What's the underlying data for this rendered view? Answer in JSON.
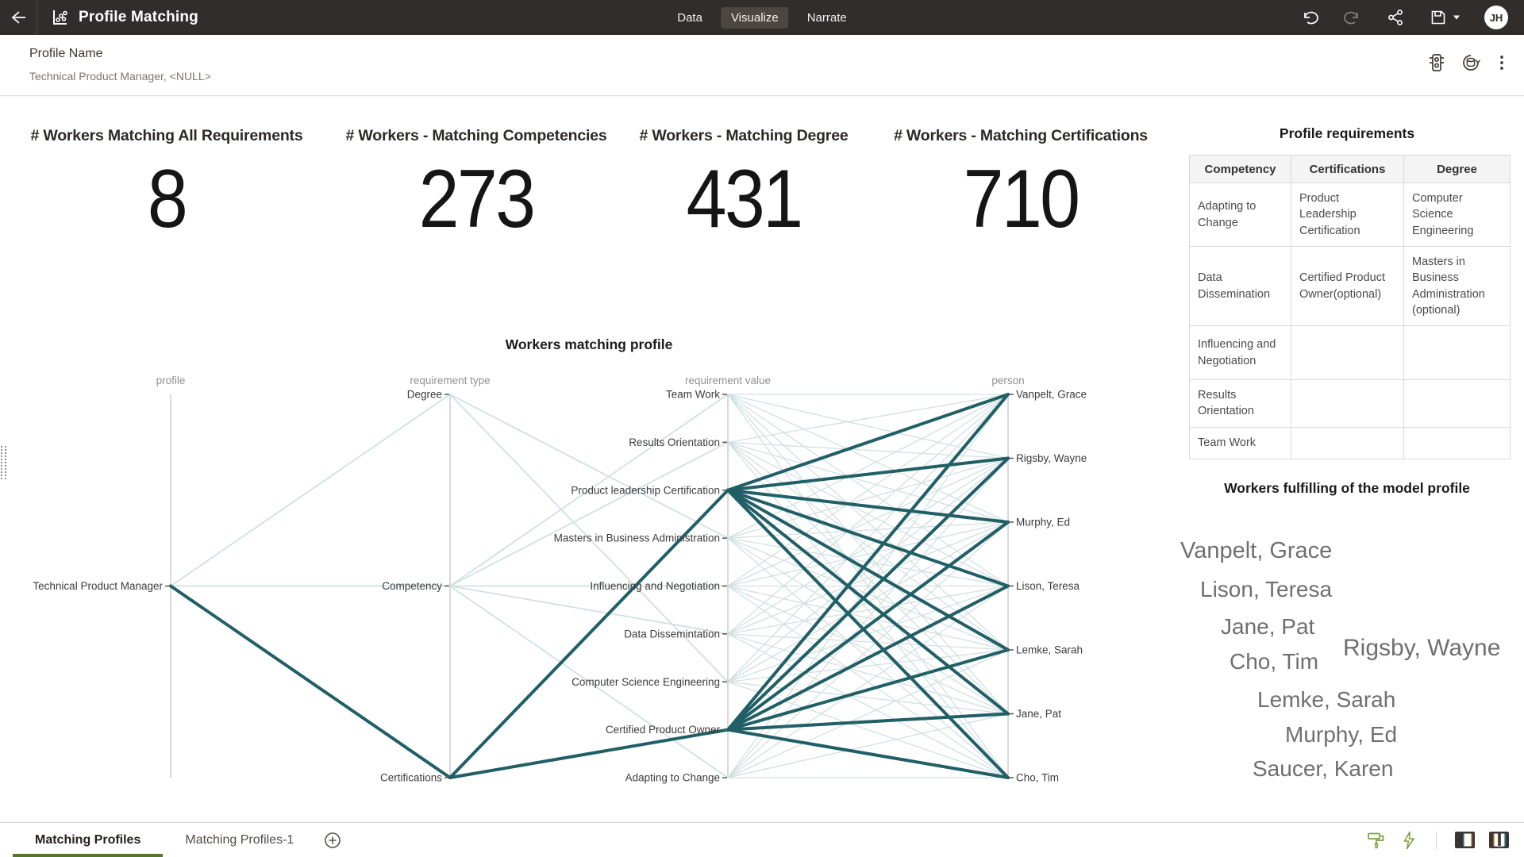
{
  "header": {
    "title": "Profile Matching",
    "tabs": [
      "Data",
      "Visualize",
      "Narrate"
    ],
    "active_tab": "Visualize",
    "avatar_initials": "JH"
  },
  "filter": {
    "label": "Profile Name",
    "value": "Technical Product Manager, <NULL>"
  },
  "kpis": [
    {
      "label": "# Workers Matching All Requirements",
      "value": "8"
    },
    {
      "label": "# Workers - Matching Competencies",
      "value": "273"
    },
    {
      "label": "# Workers - Matching Degree",
      "value": "431"
    },
    {
      "label": "# Workers - Matching Certifications",
      "value": "710"
    }
  ],
  "network": {
    "title": "Workers matching profile",
    "type": "network-parallel-coordinates",
    "colors": {
      "highlight": "#215f66",
      "faint": "#d2e0e1",
      "axis": "#b3b3b3",
      "tick": "#555555",
      "label": "#3c3c3c",
      "axis_title": "#919191"
    },
    "axes": [
      {
        "title": "profile",
        "nodes": [
          "Technical Product Manager"
        ]
      },
      {
        "title": "requirement type",
        "nodes": [
          "Degree",
          "Competency",
          "Certifications"
        ]
      },
      {
        "title": "requirement value",
        "nodes": [
          "Team Work",
          "Results Orientation",
          "Product leadership Certification",
          "Masters in Business Administration",
          "Influencing and Negotiation",
          "Data Dissemintation",
          "Computer Science Engineering",
          "Certified Product Owner",
          "Adapting to Change"
        ]
      },
      {
        "title": "person",
        "nodes": [
          "Vanpelt, Grace",
          "Rigsby, Wayne",
          "Murphy, Ed",
          "Lison, Teresa",
          "Lemke, Sarah",
          "Jane, Pat",
          "Cho, Tim"
        ]
      }
    ],
    "faint_edges": [
      [
        "Technical Product Manager",
        "Degree"
      ],
      [
        "Technical Product Manager",
        "Competency"
      ],
      [
        "Degree",
        "Masters in Business Administration"
      ],
      [
        "Degree",
        "Computer Science Engineering"
      ],
      [
        "Competency",
        "Team Work"
      ],
      [
        "Competency",
        "Results Orientation"
      ],
      [
        "Competency",
        "Influencing and Negotiation"
      ],
      [
        "Competency",
        "Data Dissemintation"
      ],
      [
        "Competency",
        "Adapting to Change"
      ]
    ],
    "faint_mesh": {
      "from_axis": 2,
      "to_axis": 3
    },
    "highlighted_edges": [
      [
        "Technical Product Manager",
        "Certifications"
      ],
      [
        "Certifications",
        "Product leadership Certification"
      ],
      [
        "Certifications",
        "Certified Product Owner"
      ],
      [
        "Product leadership Certification",
        "Vanpelt, Grace"
      ],
      [
        "Product leadership Certification",
        "Rigsby, Wayne"
      ],
      [
        "Product leadership Certification",
        "Murphy, Ed"
      ],
      [
        "Product leadership Certification",
        "Lison, Teresa"
      ],
      [
        "Product leadership Certification",
        "Lemke, Sarah"
      ],
      [
        "Product leadership Certification",
        "Jane, Pat"
      ],
      [
        "Product leadership Certification",
        "Cho, Tim"
      ],
      [
        "Certified Product Owner",
        "Vanpelt, Grace"
      ],
      [
        "Certified Product Owner",
        "Rigsby, Wayne"
      ],
      [
        "Certified Product Owner",
        "Murphy, Ed"
      ],
      [
        "Certified Product Owner",
        "Lison, Teresa"
      ],
      [
        "Certified Product Owner",
        "Lemke, Sarah"
      ],
      [
        "Certified Product Owner",
        "Jane, Pat"
      ],
      [
        "Certified Product Owner",
        "Cho, Tim"
      ]
    ]
  },
  "requirements_table": {
    "title": "Profile requirements",
    "columns": [
      "Competency",
      "Certifications",
      "Degree"
    ],
    "rows": [
      [
        "Adapting to Change",
        "Product Leadership Certification",
        "Computer Science Engineering"
      ],
      [
        "Data Dissemination",
        "Certified Product Owner(optional)",
        "Masters in Business Administration (optional)"
      ],
      [
        "Influencing and Negotiation",
        "",
        ""
      ],
      [
        "Results Orientation",
        "",
        ""
      ],
      [
        "Team Work",
        "",
        ""
      ]
    ]
  },
  "word_cloud": {
    "title": "Workers fulfilling of the model profile",
    "names": [
      "Vanpelt, Grace",
      "Lison, Teresa",
      "Jane, Pat",
      "Cho, Tim",
      "Rigsby, Wayne",
      "Lemke, Sarah",
      "Murphy, Ed",
      "Saucer, Karen"
    ]
  },
  "bottom_bar": {
    "tabs": [
      "Matching Profiles",
      "Matching Profiles-1"
    ],
    "active_tab": "Matching Profiles"
  }
}
